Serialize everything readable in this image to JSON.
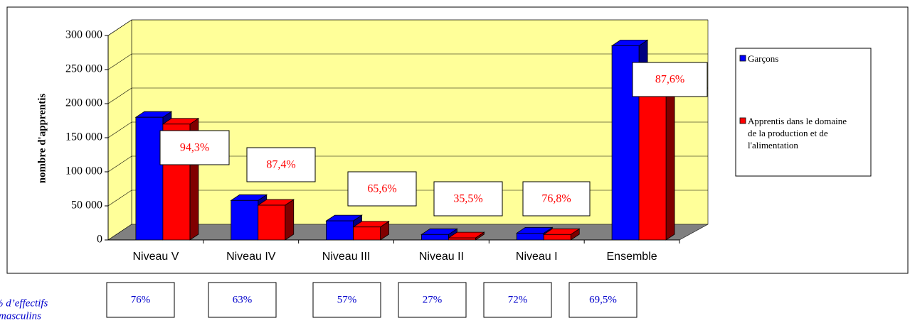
{
  "chart_data": {
    "type": "bar3d",
    "y_label": "nombre d'apprentis",
    "categories": [
      "Niveau V",
      "Niveau IV",
      "Niveau III",
      "Niveau II",
      "Niveau I",
      "Ensemble"
    ],
    "series": [
      {
        "name": "Garçons",
        "color": "#0000ff",
        "side_color": "#000080",
        "values": [
          180000,
          58000,
          28000,
          8000,
          10000,
          285000
        ]
      },
      {
        "name": "Apprentis dans le domaine de la production et de l'alimentation",
        "color": "#ff0000",
        "side_color": "#800000",
        "values": [
          170000,
          51000,
          19000,
          3000,
          8000,
          250000
        ]
      }
    ],
    "ylim": [
      0,
      300000
    ],
    "yticks": [
      0,
      {
        "value": 50000,
        "label": "50 000"
      },
      {
        "value": 100000,
        "label": "100 000"
      },
      {
        "value": 150000,
        "label": "150 000"
      },
      {
        "value": 200000,
        "label": "200 000"
      },
      {
        "value": 250000,
        "label": "250 000"
      },
      {
        "value": 300000,
        "label": "300 000"
      }
    ],
    "grid": true,
    "wall_color": "#ffff99",
    "annotations": [
      "94,3%",
      "87,4%",
      "65,6%",
      "35,5%",
      "76,8%",
      "87,6%"
    ],
    "bottom_labels": [
      "76%",
      "63%",
      "57%",
      "27%",
      "72%",
      "69,5%"
    ],
    "bottom_caption": [
      "% d’effectifs",
      "masculins"
    ]
  }
}
